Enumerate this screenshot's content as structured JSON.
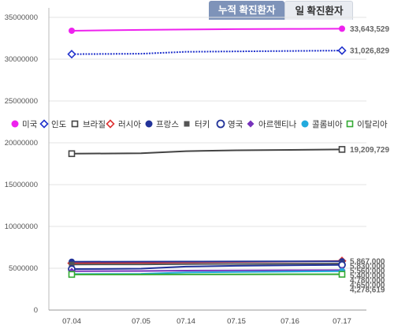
{
  "tabs": [
    {
      "label": "누적 확진환자",
      "active": true
    },
    {
      "label": "일 확진환자",
      "active": false
    }
  ],
  "chart_data": {
    "type": "line",
    "categories": [
      "07.04",
      "07.05",
      "07.14",
      "07.15",
      "07.16",
      "07.17"
    ],
    "yticks_upper": [
      "25000000",
      "30000000",
      "35000000"
    ],
    "yticks_lower": [
      "0",
      "5000000",
      "10000000",
      "15000000",
      "20000000"
    ],
    "series": [
      {
        "name": "미국",
        "color": "#ee22ee",
        "marker": "circle-filled",
        "line": "solid",
        "values": [
          33400000,
          33500000,
          33550000,
          33600000,
          33620000,
          33643529
        ],
        "end_label": "33,643,529"
      },
      {
        "name": "인도",
        "color": "#2233cc",
        "marker": "diamond-open",
        "line": "dotted",
        "values": [
          30600000,
          30650000,
          30880000,
          30930000,
          30980000,
          31026829
        ],
        "end_label": "31,026,829"
      },
      {
        "name": "브라질",
        "color": "#444444",
        "marker": "square-open",
        "line": "solid",
        "values": [
          18700000,
          18750000,
          19000000,
          19100000,
          19150000,
          19209729
        ],
        "end_label": "19,209,729"
      },
      {
        "name": "러시아",
        "color": "#dd3333",
        "marker": "diamond-open",
        "line": "solid",
        "values": [
          5600000,
          5650000,
          5700000,
          5750000,
          5800000,
          5867000
        ],
        "end_label": "5,867,000"
      },
      {
        "name": "프랑스",
        "color": "#223399",
        "marker": "circle-filled",
        "line": "solid",
        "values": [
          5780000,
          5790000,
          5800000,
          5810000,
          5820000,
          5830000
        ],
        "end_label": "5,830,000"
      },
      {
        "name": "터키",
        "color": "#555555",
        "marker": "square-filled",
        "line": "solid",
        "values": [
          5450000,
          5460000,
          5500000,
          5520000,
          5540000,
          5560000
        ],
        "end_label": "5,560,000"
      },
      {
        "name": "영국",
        "color": "#223399",
        "marker": "circle-open",
        "line": "solid",
        "values": [
          4900000,
          4950000,
          5200000,
          5300000,
          5350000,
          5400000
        ],
        "end_label": "5,400,000"
      },
      {
        "name": "아르헨티나",
        "color": "#7733bb",
        "marker": "diamond-filled",
        "line": "solid",
        "values": [
          4650000,
          4670000,
          4720000,
          4740000,
          4760000,
          4780000
        ],
        "end_label": "4,780,000"
      },
      {
        "name": "콜롬비아",
        "color": "#22aadd",
        "marker": "circle-filled",
        "line": "solid",
        "values": [
          4300000,
          4330000,
          4500000,
          4550000,
          4600000,
          4650000
        ],
        "end_label": "4,650,000"
      },
      {
        "name": "이탈리아",
        "color": "#33aa33",
        "marker": "square-open",
        "line": "solid",
        "values": [
          4260000,
          4262000,
          4270000,
          4272000,
          4275000,
          4278619
        ],
        "end_label": "4,278,619"
      }
    ],
    "legend_position": "middle",
    "grid": "horizontal"
  }
}
